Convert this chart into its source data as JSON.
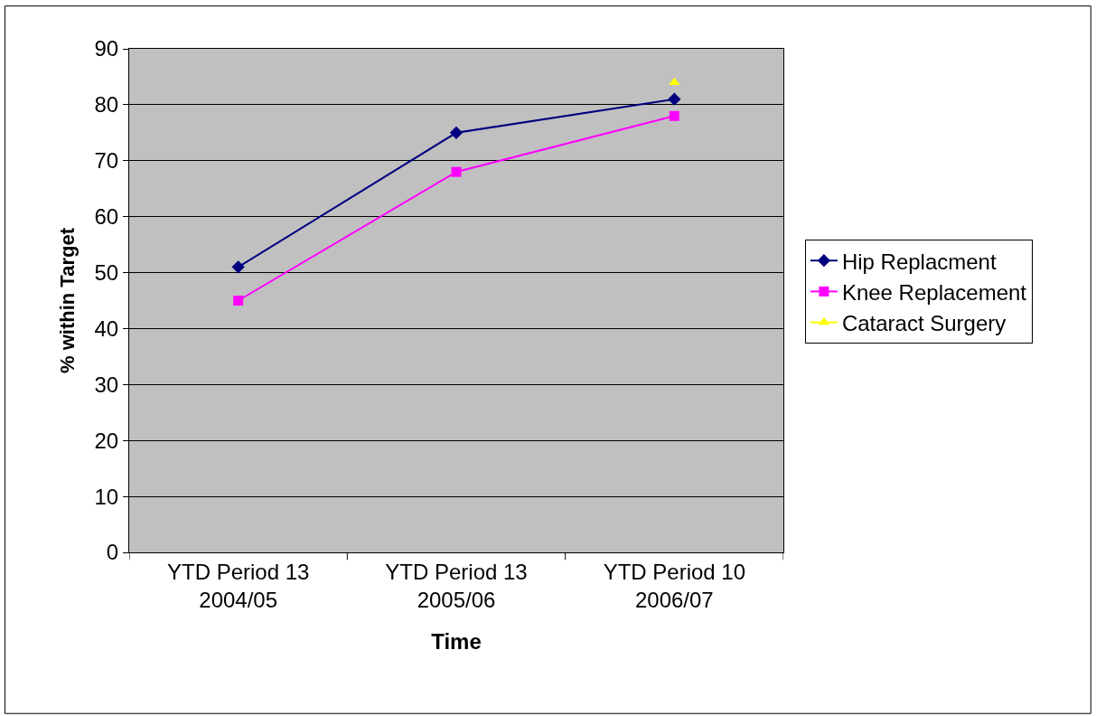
{
  "chart_data": {
    "type": "line",
    "xlabel": "Time",
    "ylabel": "% within Target",
    "categories": [
      "YTD Period 13\n2004/05",
      "YTD Period 13\n2005/06",
      "YTD Period 10\n2006/07"
    ],
    "series": [
      {
        "name": "Hip Replacment",
        "color": "#000080",
        "marker": "diamond",
        "values": [
          51,
          75,
          81
        ]
      },
      {
        "name": "Knee Replacement",
        "color": "#ff00ff",
        "marker": "square",
        "values": [
          45,
          68,
          78
        ]
      },
      {
        "name": "Cataract Surgery",
        "color": "#ffff00",
        "marker": "triangle",
        "values": [
          null,
          null,
          84
        ]
      }
    ],
    "ylim": [
      0,
      90
    ],
    "yticks": [
      0,
      10,
      20,
      30,
      40,
      50,
      60,
      70,
      80,
      90
    ],
    "grid": "y",
    "legend": "right",
    "line_style": "solid"
  }
}
